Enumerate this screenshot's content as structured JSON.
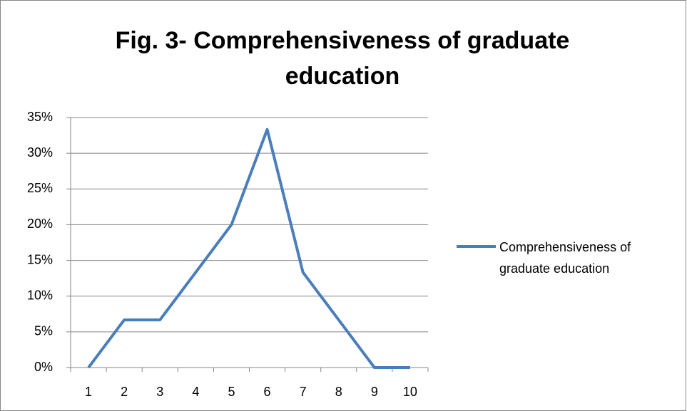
{
  "chart_data": {
    "type": "line",
    "title": "Fig. 3- Comprehensiveness of graduate education",
    "categories": [
      "1",
      "2",
      "3",
      "4",
      "5",
      "6",
      "7",
      "8",
      "9",
      "10"
    ],
    "series": [
      {
        "name": "Comprehensiveness of graduate education",
        "color": "#4a7ebb",
        "values": [
          0,
          6.67,
          6.67,
          13.33,
          20,
          33.33,
          13.33,
          6.67,
          0,
          0
        ]
      }
    ],
    "ylim": [
      0,
      35
    ],
    "yticks": [
      {
        "value": 0,
        "label": "0%"
      },
      {
        "value": 5,
        "label": "5%"
      },
      {
        "value": 10,
        "label": "10%"
      },
      {
        "value": 15,
        "label": "15%"
      },
      {
        "value": 20,
        "label": "20%"
      },
      {
        "value": 25,
        "label": "25%"
      },
      {
        "value": 30,
        "label": "30%"
      },
      {
        "value": 35,
        "label": "35%"
      }
    ],
    "grid": true,
    "legend": "right"
  }
}
